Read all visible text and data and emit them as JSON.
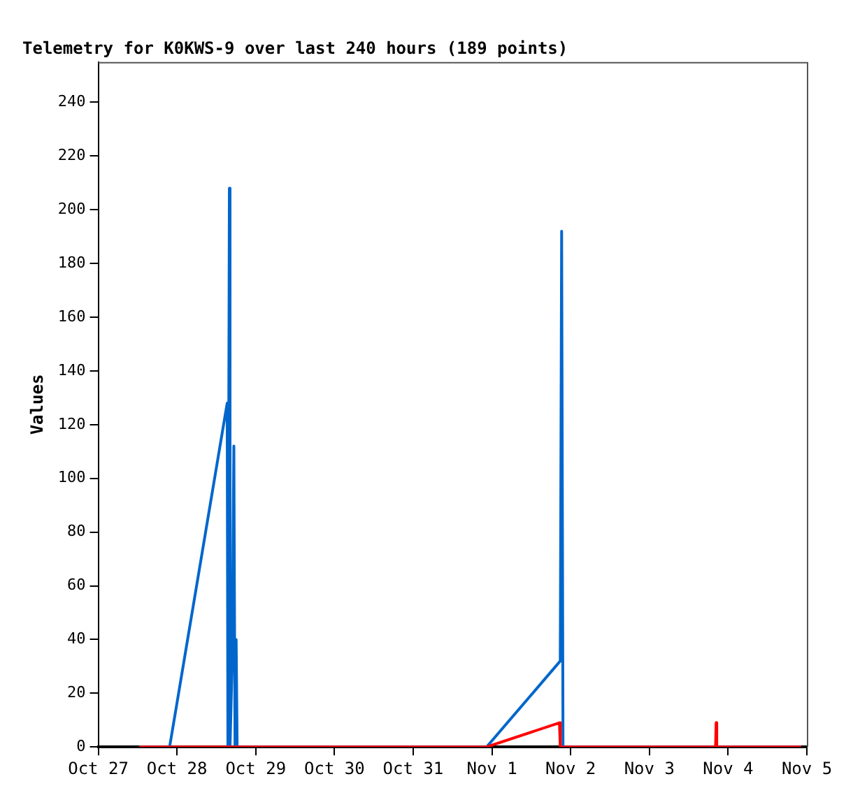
{
  "chart_data": {
    "type": "line",
    "title": "Telemetry for K0KWS-9 over last 240 hours (189 points)",
    "ylabel": "Values",
    "xlim": [
      "--10-27",
      "--11-05"
    ],
    "xticks": [
      {
        "value": "--10-27",
        "label": "Oct 27"
      },
      {
        "value": "--10-28",
        "label": "Oct 28"
      },
      {
        "value": "--10-29",
        "label": "Oct 29"
      },
      {
        "value": "--10-30",
        "label": "Oct 30"
      },
      {
        "value": "--10-31",
        "label": "Oct 31"
      },
      {
        "value": "--11-01",
        "label": "Nov 1"
      },
      {
        "value": "--11-02",
        "label": "Nov 2"
      },
      {
        "value": "--11-03",
        "label": "Nov 3"
      },
      {
        "value": "--11-04",
        "label": "Nov 4"
      },
      {
        "value": "--11-05",
        "label": "Nov 5"
      }
    ],
    "ylim": [
      0,
      255
    ],
    "yticks": [
      0,
      20,
      40,
      60,
      80,
      100,
      120,
      140,
      160,
      180,
      200,
      220,
      240
    ],
    "grid": false,
    "legend": false,
    "marker": "none",
    "line_style": "solid",
    "series": [
      {
        "color": "#ff0000",
        "x": [
          "--10-27T12:30",
          "--10-31T22:22",
          "--11-01T20:35",
          "--11-01T20:50",
          "--11-03T20:10",
          "--11-03T20:21",
          "--11-03T20:32",
          "--11-04T22:16"
        ],
        "values": [
          0,
          0,
          9,
          0,
          0,
          9,
          0,
          0
        ]
      },
      {
        "color": "#0066cc",
        "x": [
          "--10-27T12:30",
          "--10-27T21:45",
          "--10-28T15:18",
          "--10-28T15:31",
          "--10-28T15:58",
          "--10-28T16:10",
          "--10-28T16:49",
          "--10-28T17:20",
          "--10-28T17:41",
          "--10-28T18:02",
          "--10-28T18:20",
          "--10-31T22:22",
          "--11-01T20:50",
          "--11-01T21:15",
          "--11-01T21:40",
          "--11-04T22:16"
        ],
        "values": [
          0,
          0,
          128,
          0,
          208,
          0,
          32,
          112,
          0,
          40,
          0,
          0,
          32,
          192,
          0,
          0
        ]
      }
    ]
  }
}
